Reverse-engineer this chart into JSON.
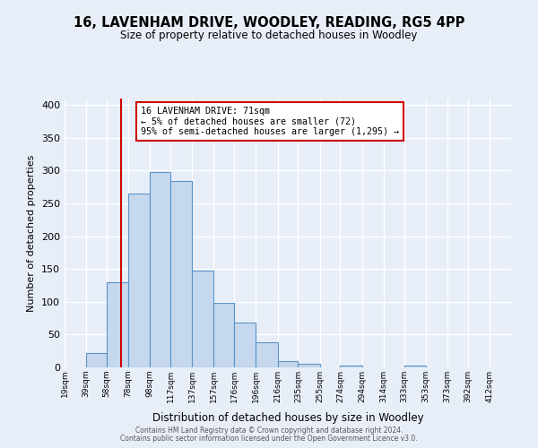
{
  "title": "16, LAVENHAM DRIVE, WOODLEY, READING, RG5 4PP",
  "subtitle": "Size of property relative to detached houses in Woodley",
  "xlabel": "Distribution of detached houses by size in Woodley",
  "ylabel": "Number of detached properties",
  "bin_labels": [
    "19sqm",
    "39sqm",
    "58sqm",
    "78sqm",
    "98sqm",
    "117sqm",
    "137sqm",
    "157sqm",
    "176sqm",
    "196sqm",
    "216sqm",
    "235sqm",
    "255sqm",
    "274sqm",
    "294sqm",
    "314sqm",
    "333sqm",
    "353sqm",
    "373sqm",
    "392sqm",
    "412sqm"
  ],
  "bar_heights": [
    0,
    22,
    130,
    265,
    298,
    284,
    147,
    98,
    68,
    38,
    10,
    5,
    0,
    3,
    0,
    0,
    3,
    0,
    0,
    0,
    0
  ],
  "bar_color": "#c5d8ee",
  "bar_edge_color": "#5a93c8",
  "ylim": [
    0,
    410
  ],
  "yticks": [
    0,
    50,
    100,
    150,
    200,
    250,
    300,
    350,
    400
  ],
  "property_line_x": 71,
  "property_line_color": "#cc0000",
  "annotation_title": "16 LAVENHAM DRIVE: 71sqm",
  "annotation_line1": "← 5% of detached houses are smaller (72)",
  "annotation_line2": "95% of semi-detached houses are larger (1,295) →",
  "annotation_box_color": "#cc0000",
  "bg_color": "#e8eef8",
  "footer1": "Contains HM Land Registry data © Crown copyright and database right 2024.",
  "footer2": "Contains public sector information licensed under the Open Government Licence v3.0.",
  "bin_edges": [
    19,
    39,
    58,
    78,
    98,
    117,
    137,
    157,
    176,
    196,
    216,
    235,
    255,
    274,
    294,
    314,
    333,
    353,
    373,
    392,
    412
  ]
}
